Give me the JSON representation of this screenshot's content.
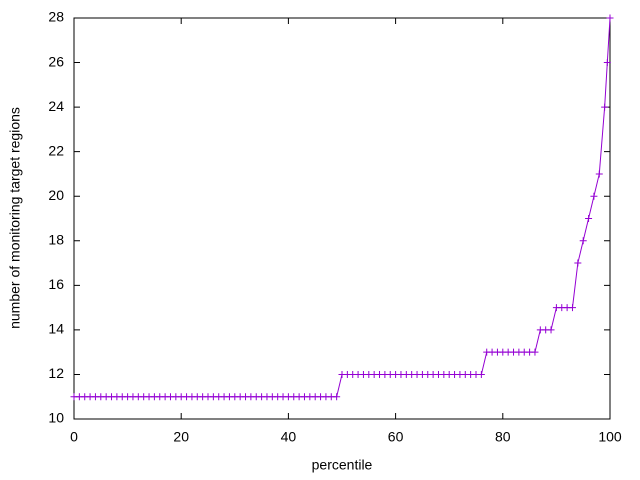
{
  "chart_data": {
    "type": "line",
    "xlabel": "percentile",
    "ylabel": "number of monitoring target regions",
    "x": [
      0,
      1,
      2,
      3,
      4,
      5,
      6,
      7,
      8,
      9,
      10,
      11,
      12,
      13,
      14,
      15,
      16,
      17,
      18,
      19,
      20,
      21,
      22,
      23,
      24,
      25,
      26,
      27,
      28,
      29,
      30,
      31,
      32,
      33,
      34,
      35,
      36,
      37,
      38,
      39,
      40,
      41,
      42,
      43,
      44,
      45,
      46,
      47,
      48,
      49,
      50,
      51,
      52,
      53,
      54,
      55,
      56,
      57,
      58,
      59,
      60,
      61,
      62,
      63,
      64,
      65,
      66,
      67,
      68,
      69,
      70,
      71,
      72,
      73,
      74,
      75,
      76,
      77,
      78,
      79,
      80,
      81,
      82,
      83,
      84,
      85,
      86,
      87,
      88,
      89,
      90,
      91,
      92,
      93,
      94,
      95,
      96,
      97,
      98,
      99,
      99.5,
      100
    ],
    "series": [
      {
        "color": "#9400d3",
        "marker": "+",
        "values": [
          11,
          11,
          11,
          11,
          11,
          11,
          11,
          11,
          11,
          11,
          11,
          11,
          11,
          11,
          11,
          11,
          11,
          11,
          11,
          11,
          11,
          11,
          11,
          11,
          11,
          11,
          11,
          11,
          11,
          11,
          11,
          11,
          11,
          11,
          11,
          11,
          11,
          11,
          11,
          11,
          11,
          11,
          11,
          11,
          11,
          11,
          11,
          11,
          11,
          11,
          12,
          12,
          12,
          12,
          12,
          12,
          12,
          12,
          12,
          12,
          12,
          12,
          12,
          12,
          12,
          12,
          12,
          12,
          12,
          12,
          12,
          12,
          12,
          12,
          12,
          12,
          12,
          13,
          13,
          13,
          13,
          13,
          13,
          13,
          13,
          13,
          13,
          14,
          14,
          14,
          15,
          15,
          15,
          15,
          17,
          18,
          19,
          20,
          21,
          24,
          26,
          28
        ]
      }
    ],
    "xlim": [
      0,
      100
    ],
    "xticks": [
      0,
      20,
      40,
      60,
      80,
      100
    ],
    "ylim": [
      10,
      28
    ],
    "yticks": [
      10,
      12,
      14,
      16,
      18,
      20,
      22,
      24,
      26,
      28
    ],
    "grid": false
  }
}
